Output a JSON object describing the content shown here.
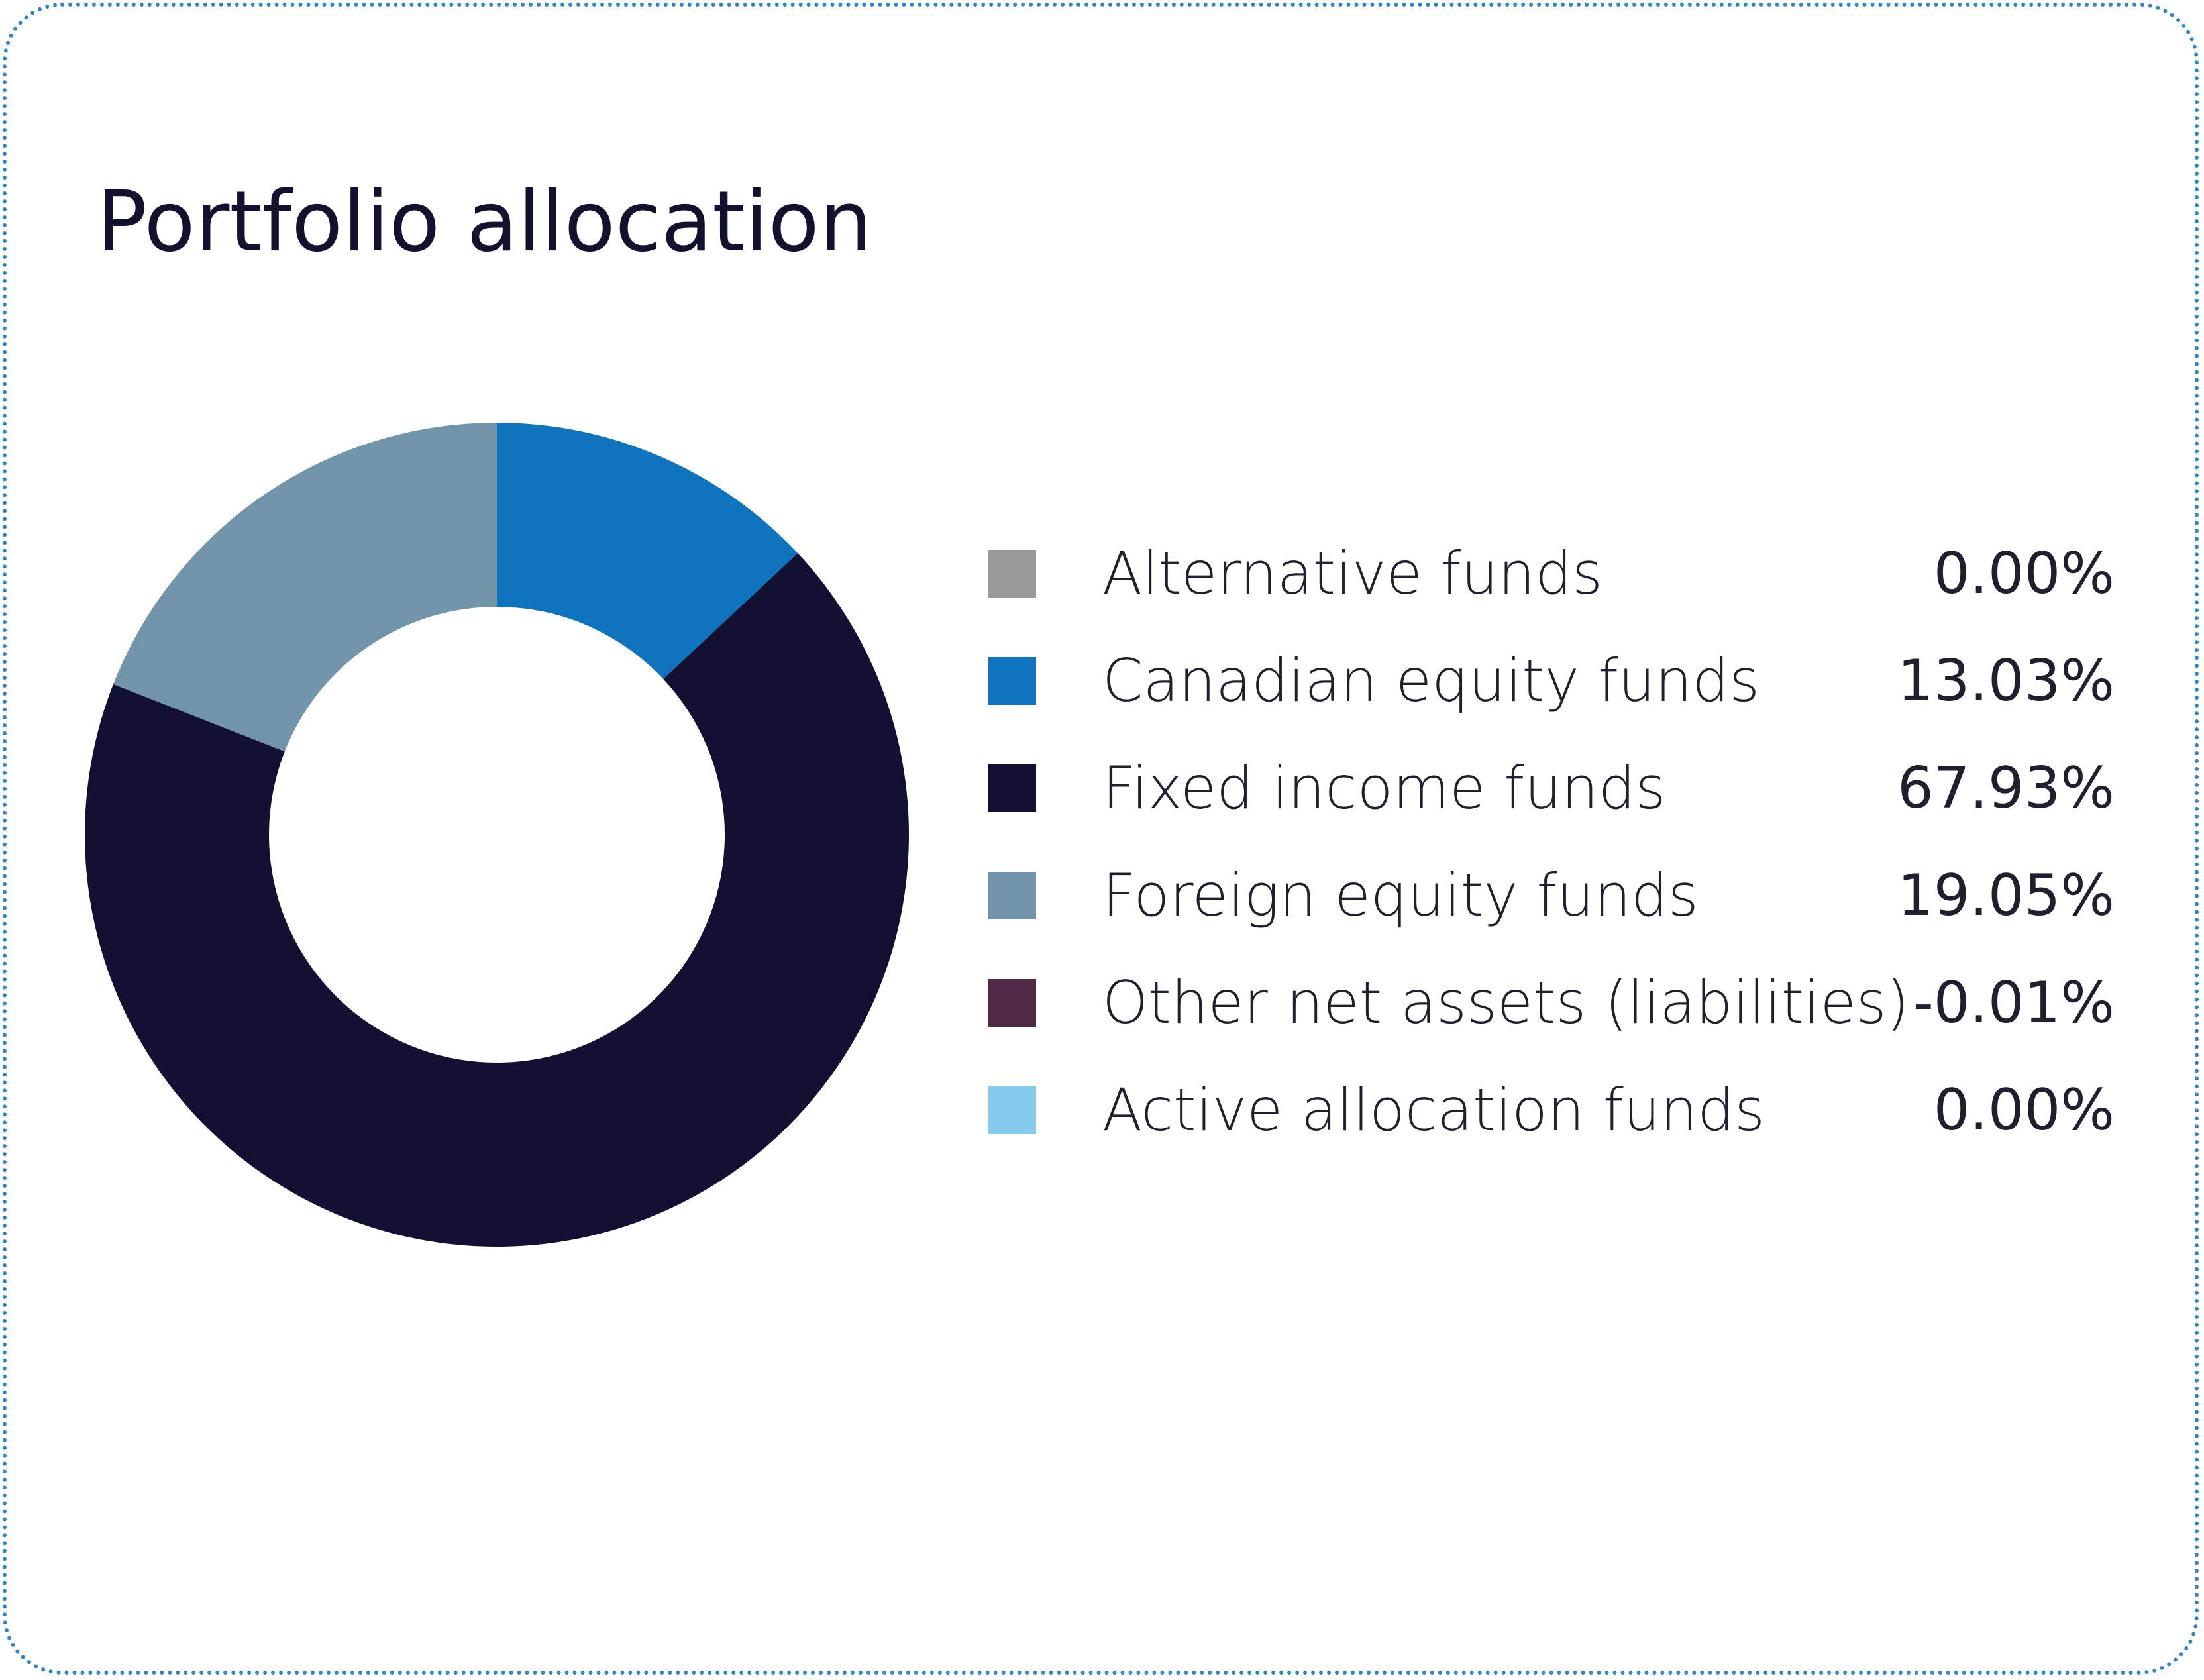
{
  "card": {
    "title": "Portfolio allocation"
  },
  "chart_data": {
    "type": "pie",
    "variant": "donut",
    "title": "Portfolio allocation",
    "legend_position": "right",
    "slices": [
      {
        "label": "Alternative funds",
        "value": 0.0,
        "display": "0.00%",
        "color": "#999a9c"
      },
      {
        "label": "Canadian equity funds",
        "value": 13.03,
        "display": "13.03%",
        "color": "#0f74bd"
      },
      {
        "label": "Fixed income funds",
        "value": 67.93,
        "display": "67.93%",
        "color": "#131131"
      },
      {
        "label": "Foreign equity funds",
        "value": 19.05,
        "display": "19.05%",
        "color": "#7295aa"
      },
      {
        "label": "Other net assets (liabilities)",
        "value": -0.01,
        "display": "-0.01%",
        "color": "#4f2a46"
      },
      {
        "label": "Active allocation funds",
        "value": 0.0,
        "display": "0.00%",
        "color": "#86caf0"
      }
    ]
  }
}
